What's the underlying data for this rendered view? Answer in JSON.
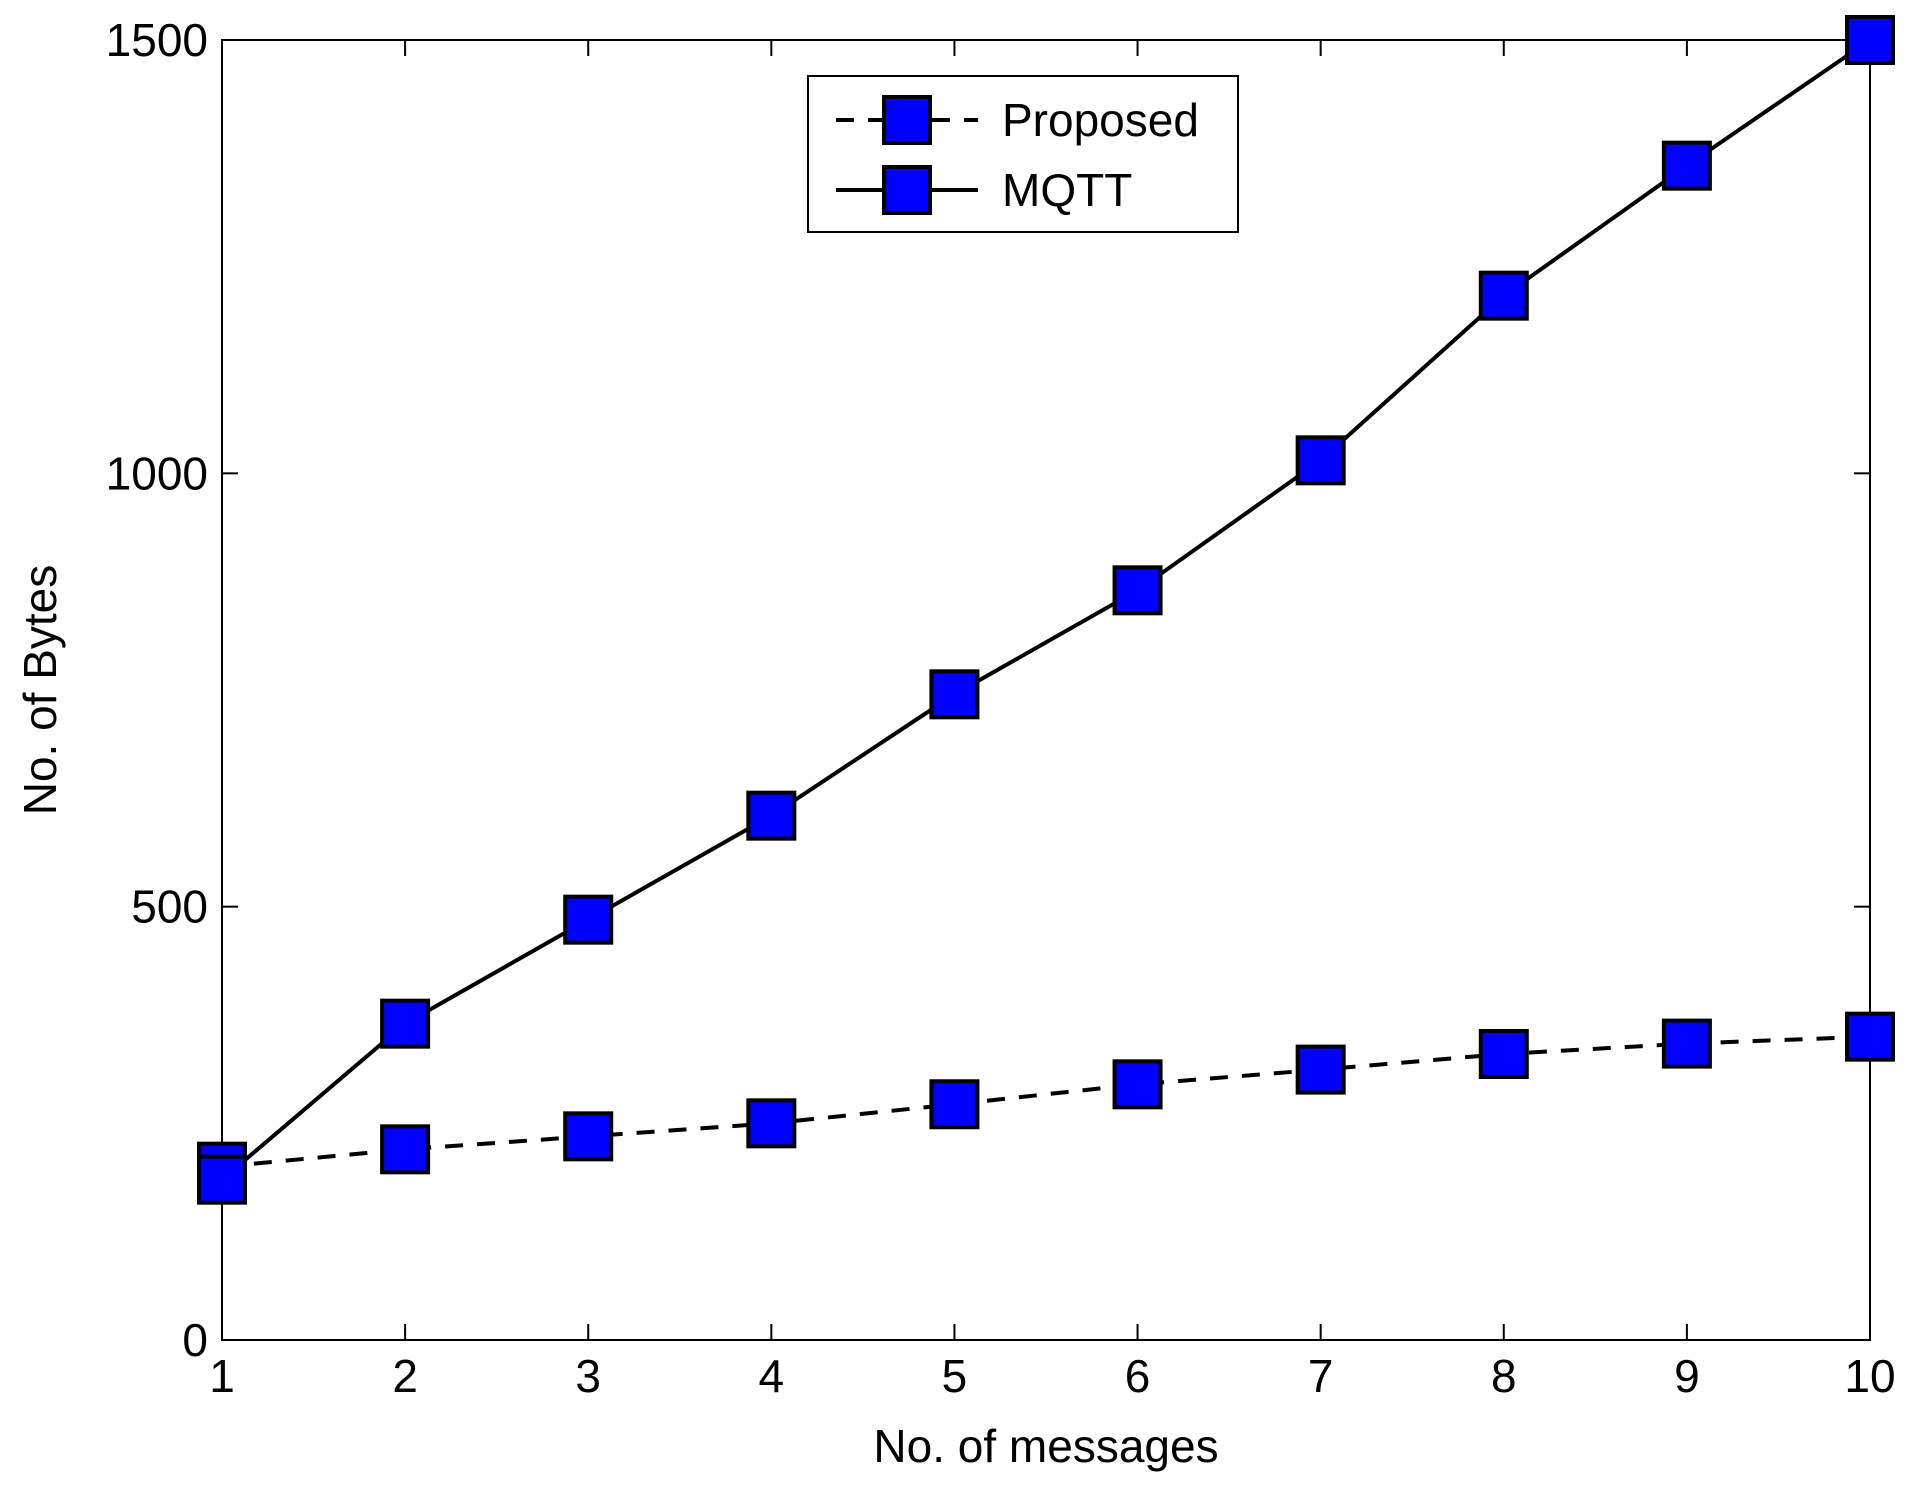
{
  "chart_data": {
    "type": "line",
    "title": "",
    "xlabel": "No. of messages",
    "ylabel": "No. of Bytes",
    "x": [
      1,
      2,
      3,
      4,
      5,
      6,
      7,
      8,
      9,
      10
    ],
    "xlim": [
      1,
      10
    ],
    "ylim": [
      0,
      1500
    ],
    "xticks": [
      1,
      2,
      3,
      4,
      5,
      6,
      7,
      8,
      9,
      10
    ],
    "yticks": [
      0,
      500,
      1000,
      1500
    ],
    "grid": false,
    "legend_position": "top-center",
    "series": [
      {
        "name": "Proposed",
        "line_style": "dashed",
        "marker": "square",
        "marker_color": "#0000ff",
        "line_color": "#000000",
        "values": [
          200,
          220,
          235,
          250,
          272,
          295,
          312,
          330,
          342,
          350
        ]
      },
      {
        "name": "MQTT",
        "line_style": "solid",
        "marker": "square",
        "marker_color": "#0000ff",
        "line_color": "#000000",
        "values": [
          185,
          365,
          485,
          605,
          745,
          865,
          1015,
          1205,
          1355,
          1500
        ]
      }
    ]
  }
}
